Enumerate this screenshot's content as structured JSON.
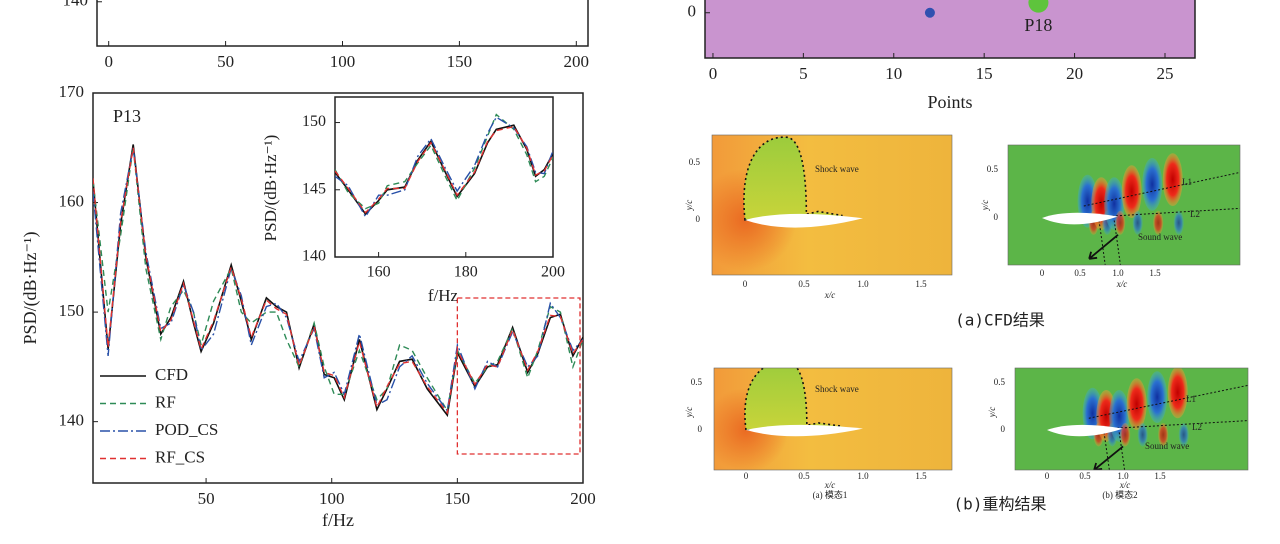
{
  "chart_data": [
    {
      "type": "line",
      "xlim": [
        -5,
        205
      ],
      "ylim": [
        136,
        170
      ],
      "xticks": [
        0,
        50,
        100,
        150,
        200
      ],
      "yticks": [
        140
      ],
      "series": []
    },
    {
      "type": "scatter",
      "background": "#c994cf",
      "xlabel": "Points",
      "annotation": "P18",
      "xlim": [
        -0.44,
        26.66
      ],
      "ylim": [
        -1.8,
        1.7
      ],
      "xticks": [
        0,
        5,
        10,
        15,
        20,
        25
      ],
      "yticks": [
        0
      ],
      "series": [
        {
          "color": "#5ec43c",
          "x": [
            18
          ],
          "values": [
            0.4
          ]
        },
        {
          "color": "#3050b0",
          "x": [
            12
          ],
          "values": [
            0
          ]
        }
      ]
    },
    {
      "type": "line",
      "annotation": "P13",
      "xlabel": "f/Hz",
      "ylabel": "PSD/(dB·Hz⁻¹)",
      "xlim": [
        5,
        200
      ],
      "ylim": [
        134.4,
        170
      ],
      "xticks": [
        50,
        100,
        150,
        200
      ],
      "yticks": [
        140,
        150,
        160,
        170
      ],
      "legend": "lower left",
      "x": [
        5,
        11,
        16,
        21,
        26,
        32,
        36,
        41,
        45,
        48,
        53,
        60,
        64,
        68,
        74,
        78,
        82,
        87,
        93,
        97,
        101,
        105,
        111,
        118,
        122,
        127,
        132,
        138,
        146,
        150,
        157,
        162,
        166,
        172,
        178,
        182,
        187,
        191,
        196,
        200
      ],
      "series": [
        {
          "name": "CFD",
          "color": "#111111",
          "dash": "solid",
          "values": [
            162,
            146.6,
            158,
            165.3,
            155,
            148,
            149.5,
            152.8,
            149,
            146.4,
            149,
            154.3,
            151,
            147.5,
            151.3,
            150.5,
            150,
            144.9,
            148.9,
            144.3,
            144,
            142,
            147.5,
            141.1,
            143,
            145.5,
            145.7,
            143,
            140.6,
            146.3,
            143.2,
            145,
            145.2,
            148.6,
            144.5,
            146.2,
            149.5,
            149.8,
            146,
            147.7
          ]
        },
        {
          "name": "RF",
          "color": "#2e8b57",
          "dash": "dashed",
          "values": [
            162,
            150,
            157,
            165,
            154,
            147.5,
            150.5,
            152,
            150,
            147,
            151,
            154,
            150,
            149,
            150,
            150,
            147.5,
            145,
            149,
            145,
            142.5,
            142.5,
            146.5,
            142,
            143,
            147,
            146.5,
            144,
            141,
            146.5,
            143.5,
            145,
            145.5,
            148.5,
            144,
            146.5,
            150.5,
            150,
            145,
            147.5
          ]
        },
        {
          "name": "POD_CS",
          "color": "#2850a8",
          "dash": "dashdot",
          "values": [
            161,
            146,
            159,
            165,
            155.5,
            148.5,
            149,
            152.5,
            150,
            146.5,
            148,
            154,
            151.5,
            147,
            150.5,
            150.8,
            149.5,
            145.5,
            148.5,
            144,
            144.5,
            142.5,
            148,
            141.5,
            142,
            145,
            146,
            143.5,
            141,
            147,
            143,
            145.5,
            145,
            148.2,
            145,
            146,
            150.8,
            149.5,
            146.5,
            147.5
          ]
        },
        {
          "name": "RF_CS",
          "color": "#e03030",
          "dash": "dashed",
          "values": [
            162.2,
            146.8,
            158.2,
            165,
            155.2,
            148.2,
            149.3,
            152.6,
            149.2,
            146.6,
            149.2,
            154.1,
            151.2,
            147.7,
            151.1,
            150.3,
            149.8,
            145.1,
            148.7,
            144.5,
            144.2,
            142.2,
            147.3,
            141.3,
            143.2,
            145.3,
            145.5,
            143.2,
            140.8,
            146.5,
            143.4,
            145.2,
            145,
            148.4,
            144.7,
            146.4,
            149.7,
            149.6,
            146.2,
            147.5
          ]
        }
      ]
    },
    {
      "type": "line",
      "xlabel": "f/Hz",
      "ylabel": "PSD/(dB·Hz⁻¹)",
      "xlim": [
        150,
        200
      ],
      "ylim": [
        140,
        151.9
      ],
      "xticks": [
        160,
        180,
        200
      ],
      "yticks": [
        140,
        145,
        150
      ],
      "x": [
        150,
        153,
        157,
        160,
        162,
        166,
        169,
        172,
        175,
        178,
        182,
        185,
        187,
        191,
        194,
        196,
        198,
        200
      ],
      "series": [
        {
          "color": "#111111",
          "dash": "solid",
          "values": [
            146.3,
            145,
            143.2,
            144.2,
            145,
            145.2,
            147.2,
            148.6,
            146.5,
            144.5,
            146.2,
            148.5,
            149.5,
            149.8,
            148,
            146,
            146.5,
            147.7
          ]
        },
        {
          "color": "#2e8b57",
          "dash": "dashed",
          "values": [
            146.5,
            144.8,
            143.6,
            144,
            145.3,
            145.6,
            147,
            148.3,
            146.2,
            144.2,
            146.6,
            149,
            150.6,
            149.5,
            147.6,
            145.6,
            146,
            147.4
          ]
        },
        {
          "color": "#2850a8",
          "dash": "dashdot",
          "values": [
            146,
            145.3,
            143,
            144.6,
            144.6,
            145,
            147.5,
            148.8,
            146.8,
            144.9,
            146.8,
            149.2,
            150.4,
            149.6,
            148.2,
            146.3,
            146.2,
            147.9
          ]
        },
        {
          "color": "#e03030",
          "dash": "dashed",
          "values": [
            146.4,
            145.1,
            143.3,
            144.3,
            145.1,
            145.1,
            147.1,
            148.5,
            146.6,
            144.6,
            146.3,
            148.6,
            149.4,
            149.7,
            148.1,
            146.1,
            146.4,
            147.6
          ]
        }
      ]
    }
  ],
  "figures": [
    {
      "kind": "shock",
      "x_ticks": [
        "0",
        "0.5",
        "1.0",
        "1.5"
      ],
      "y_ticks": [
        "0.5",
        "0"
      ],
      "xlabel": "x/c",
      "ylabel": "y/c",
      "annotations": [
        "Shock wave"
      ]
    },
    {
      "kind": "wave",
      "x_ticks": [
        "0",
        "0.5",
        "1.0",
        "1.5"
      ],
      "y_ticks": [
        "0.5",
        "0"
      ],
      "xlabel": "x/c",
      "ylabel": "y/c",
      "annotations": [
        "L1",
        "L2",
        "Sound wave"
      ]
    },
    {
      "kind": "shock",
      "x_ticks": [
        "0",
        "0.5",
        "1.0",
        "1.5"
      ],
      "y_ticks": [
        "0.5",
        "0"
      ],
      "xlabel": "x/c",
      "ylabel": "y/c",
      "annotations": [
        "Shock wave"
      ],
      "caption": "(a) 模态1"
    },
    {
      "kind": "wave",
      "x_ticks": [
        "0",
        "0.5",
        "1.0",
        "1.5"
      ],
      "y_ticks": [
        "0.5",
        "0"
      ],
      "xlabel": "x/c",
      "ylabel": "y/c",
      "annotations": [
        "L1",
        "L2",
        "Sound wave"
      ],
      "caption": "(b) 模态2"
    }
  ],
  "captions": [
    "(a)CFD结果",
    "(b)重构结果"
  ]
}
